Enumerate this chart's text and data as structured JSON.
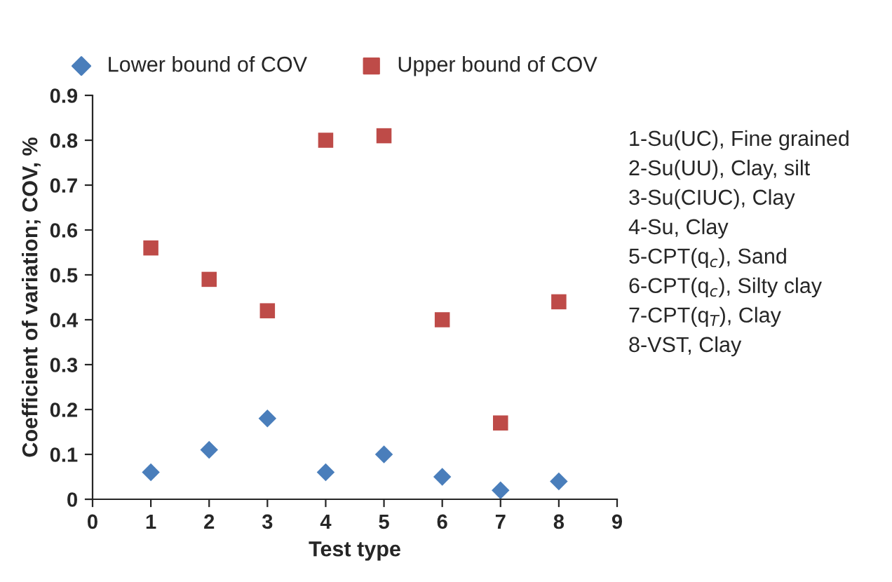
{
  "chart_data": {
    "type": "scatter",
    "xlabel": "Test type",
    "ylabel": "Coefficient of variation; COV, %",
    "x": [
      1,
      2,
      3,
      4,
      5,
      6,
      7,
      8
    ],
    "series": [
      {
        "name": "Lower bound of COV",
        "color": "#4a7ebb",
        "marker": "diamond",
        "values": [
          0.06,
          0.11,
          0.18,
          0.06,
          0.1,
          0.05,
          0.02,
          0.04
        ]
      },
      {
        "name": "Upper bound of COV",
        "color": "#be4b48",
        "marker": "square",
        "values": [
          0.56,
          0.49,
          0.42,
          0.8,
          0.81,
          0.4,
          0.17,
          0.44
        ]
      }
    ],
    "xlim": [
      0,
      9
    ],
    "xticks": [
      0,
      1,
      2,
      3,
      4,
      5,
      6,
      7,
      8,
      9
    ],
    "ylim": [
      0,
      0.9
    ],
    "yticks": [
      {
        "value": 0,
        "label": "0"
      },
      {
        "value": 0.1,
        "label": "0.1"
      },
      {
        "value": 0.2,
        "label": "0.2"
      },
      {
        "value": 0.3,
        "label": "0.3"
      },
      {
        "value": 0.4,
        "label": "0.4"
      },
      {
        "value": 0.5,
        "label": "0.5"
      },
      {
        "value": 0.6,
        "label": "0.6"
      },
      {
        "value": 0.7,
        "label": "0.7"
      },
      {
        "value": 0.8,
        "label": "0.8"
      },
      {
        "value": 0.9,
        "label": "0.9"
      }
    ],
    "grid": false,
    "legend": "top",
    "annotations": [
      "1-Su(UC), Fine grained",
      "2-Su(UU), Clay, silt",
      "3-Su(CIUC), Clay",
      "4-Su, Clay",
      "5-CPT(q$_{c}$), Sand",
      "6-CPT(q$_{c}$), Silty clay",
      "7-CPT(q$_{T}$), Clay",
      "8-VST, Clay"
    ]
  }
}
